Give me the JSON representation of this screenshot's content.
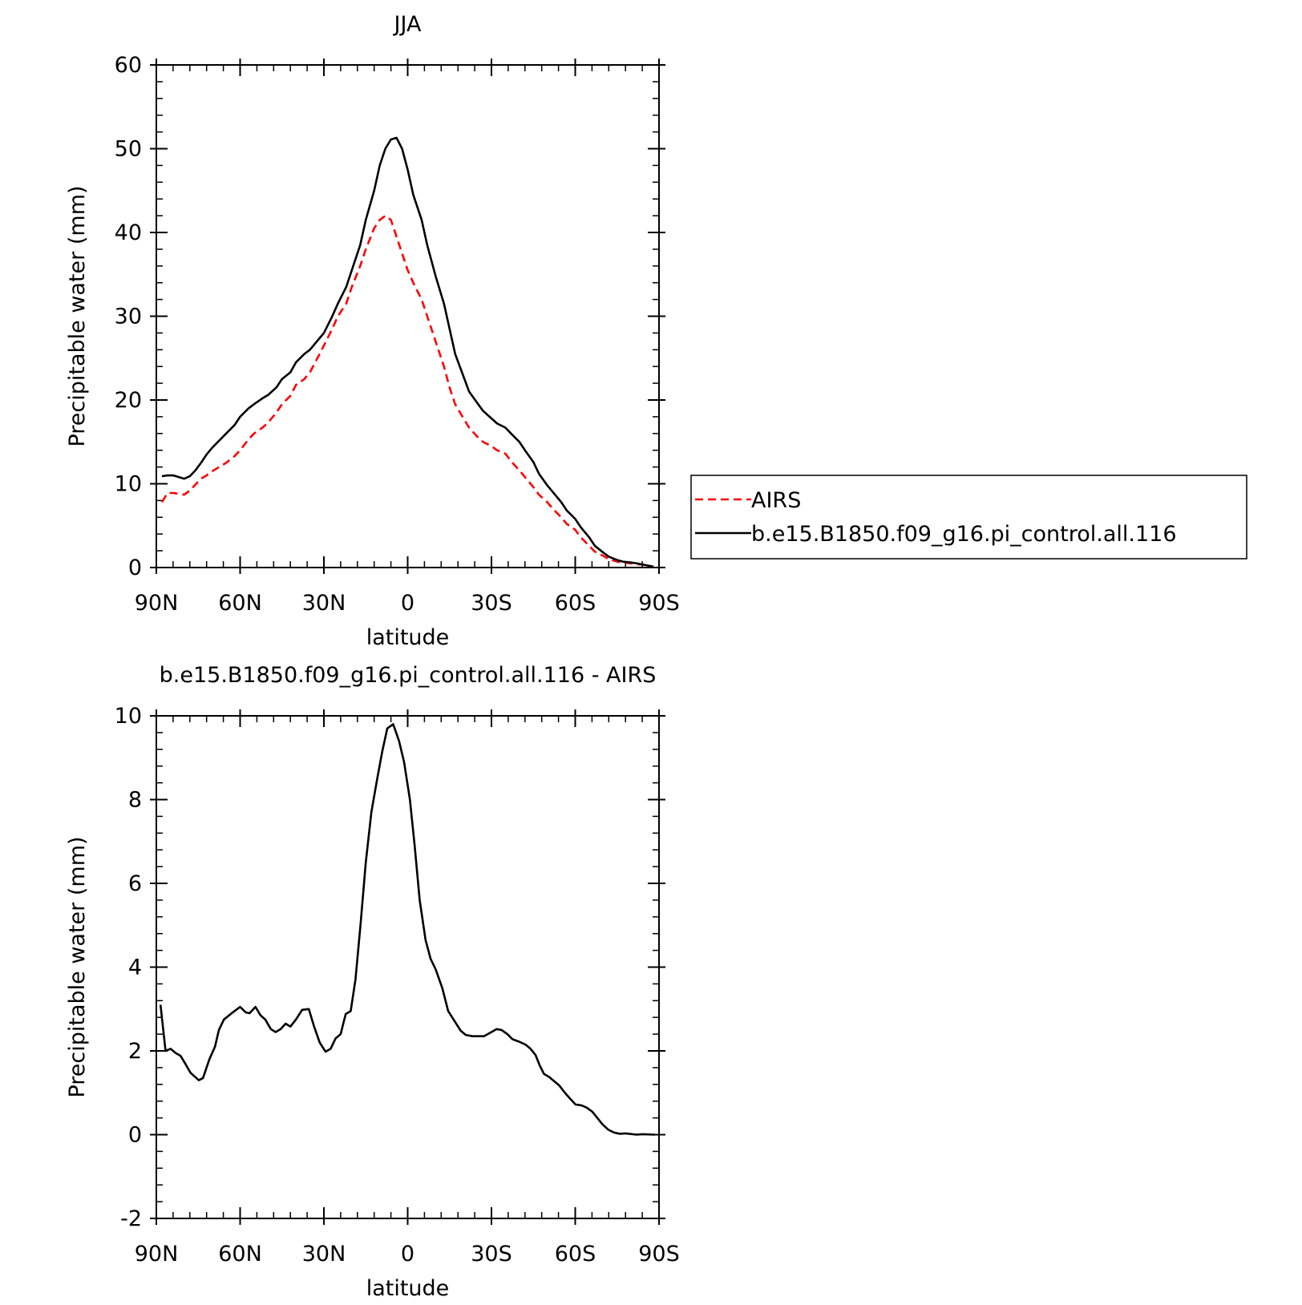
{
  "chart_data": [
    {
      "type": "line",
      "title": "JJA",
      "x_label": "latitude",
      "y_label": "Precipitable water (mm)",
      "xlim": [
        90,
        -90
      ],
      "xticks": [
        {
          "value": 90,
          "label": "90N"
        },
        {
          "value": 60,
          "label": "60N"
        },
        {
          "value": 30,
          "label": "30N"
        },
        0,
        {
          "value": -30,
          "label": "30S"
        },
        {
          "value": -60,
          "label": "60S"
        },
        {
          "value": -90,
          "label": "90S"
        }
      ],
      "ylim": [
        0,
        60
      ],
      "yticks": [
        0,
        10,
        20,
        30,
        40,
        50,
        60
      ],
      "legend": "right",
      "x": [
        88,
        86,
        84,
        82,
        80,
        78,
        76,
        74,
        72,
        70,
        65,
        62,
        60,
        57,
        55,
        52,
        50,
        47,
        45,
        42,
        40,
        37,
        35,
        32,
        30,
        27,
        25,
        22,
        20,
        17,
        15,
        12,
        10,
        8,
        6,
        4,
        2,
        0,
        -2,
        -5,
        -7,
        -10,
        -13,
        -15,
        -17,
        -20,
        -22,
        -25,
        -27,
        -30,
        -32,
        -35,
        -37,
        -40,
        -42,
        -45,
        -47,
        -50,
        -52,
        -55,
        -57,
        -60,
        -62,
        -65,
        -67,
        -70,
        -72,
        -75,
        -77,
        -80,
        -82,
        -85,
        -88
      ],
      "series": [
        {
          "name": "AIRS",
          "color": "#ff0000",
          "dash": true,
          "values": [
            7.8,
            8.9,
            8.9,
            8.8,
            8.7,
            9.2,
            9.9,
            10.6,
            11.0,
            11.5,
            12.5,
            13.3,
            14.0,
            15.3,
            16.0,
            16.7,
            17.3,
            18.5,
            19.5,
            20.5,
            21.8,
            22.5,
            23.3,
            25.2,
            26.5,
            28.5,
            30.0,
            31.5,
            33.5,
            36.0,
            38.0,
            40.5,
            41.5,
            42.0,
            41.5,
            39.5,
            37.5,
            35.5,
            34.0,
            32.0,
            30.0,
            27.0,
            24.0,
            21.5,
            19.5,
            17.8,
            16.7,
            15.6,
            15.0,
            14.5,
            14.0,
            13.6,
            12.7,
            11.6,
            10.8,
            9.6,
            8.7,
            7.8,
            7.0,
            6.0,
            5.2,
            4.5,
            3.6,
            2.6,
            1.9,
            1.4,
            1.0,
            0.7,
            0.6,
            0.5,
            0.4,
            0.3,
            0.1
          ]
        },
        {
          "name": "b.e15.B1850.f09_g16.pi_control.all.116",
          "color": "#000000",
          "dash": false,
          "values": [
            10.9,
            11.0,
            11.0,
            10.8,
            10.6,
            10.9,
            11.6,
            12.5,
            13.5,
            14.3,
            16.0,
            17.0,
            18.0,
            19.0,
            19.5,
            20.2,
            20.6,
            21.5,
            22.5,
            23.3,
            24.5,
            25.5,
            26.0,
            27.2,
            28.0,
            30.0,
            31.5,
            33.5,
            35.5,
            38.5,
            41.5,
            45.0,
            48.0,
            50.0,
            51.1,
            51.3,
            50.0,
            47.5,
            44.5,
            41.5,
            38.5,
            34.8,
            31.5,
            28.5,
            25.5,
            22.8,
            21.0,
            19.6,
            18.7,
            17.8,
            17.2,
            16.7,
            16.0,
            15.0,
            14.0,
            12.6,
            11.2,
            9.8,
            9.0,
            7.8,
            6.8,
            5.8,
            4.8,
            3.6,
            2.6,
            1.8,
            1.3,
            0.9,
            0.7,
            0.6,
            0.5,
            0.3,
            0.1
          ]
        }
      ]
    },
    {
      "type": "line",
      "title": "b.e15.B1850.f09_g16.pi_control.all.116 - AIRS",
      "x_label": "latitude",
      "y_label": "Precipitable water (mm)",
      "xlim": [
        90,
        -90
      ],
      "xticks": [
        {
          "value": 90,
          "label": "90N"
        },
        {
          "value": 60,
          "label": "60N"
        },
        {
          "value": 30,
          "label": "30N"
        },
        0,
        {
          "value": -30,
          "label": "30S"
        },
        {
          "value": -60,
          "label": "60S"
        },
        {
          "value": -90,
          "label": "90S"
        }
      ],
      "ylim": [
        -2,
        10
      ],
      "yticks": [
        -2,
        0,
        2,
        4,
        6,
        8,
        10
      ],
      "x": [
        88.5,
        86.7,
        84.9,
        83.1,
        81.3,
        79.5,
        77.8,
        74.8,
        73.3,
        71,
        69,
        67.6,
        65.8,
        63,
        60,
        58,
        56.6,
        54.5,
        52.7,
        51,
        49,
        47.3,
        45.5,
        43.7,
        42,
        40,
        37.8,
        35.4,
        33.6,
        31.5,
        29.4,
        27.6,
        25.8,
        24,
        22.2,
        20.4,
        18.7,
        16.9,
        15,
        13,
        10.9,
        9.1,
        7.3,
        5.2,
        3.1,
        1.3,
        -0.8,
        -2.5,
        -4.3,
        -6.4,
        -8.2,
        -10,
        -12.4,
        -14.5,
        -16.9,
        -19,
        -20.8,
        -23.2,
        -27.3,
        -30,
        -31.8,
        -33.6,
        -35.7,
        -37.5,
        -39.9,
        -42.2,
        -44,
        -45.8,
        -47.3,
        -48.8,
        -50.6,
        -52.4,
        -54.2,
        -56.3,
        -58.3,
        -60.1,
        -62.2,
        -64,
        -66.1,
        -67.9,
        -69.7,
        -71.8,
        -73.9,
        -76,
        -78,
        -82,
        -84,
        -88.5
      ],
      "series": [
        {
          "color": "#000000",
          "dash": false,
          "values": [
            3.1,
            2.0,
            2.05,
            1.95,
            1.88,
            1.68,
            1.48,
            1.3,
            1.35,
            1.8,
            2.1,
            2.5,
            2.75,
            2.9,
            3.05,
            2.92,
            2.9,
            3.05,
            2.85,
            2.75,
            2.52,
            2.45,
            2.52,
            2.65,
            2.58,
            2.75,
            2.98,
            3.0,
            2.6,
            2.2,
            1.98,
            2.05,
            2.3,
            2.4,
            2.88,
            2.95,
            3.7,
            5.0,
            6.5,
            7.7,
            8.5,
            9.15,
            9.7,
            9.8,
            9.4,
            8.9,
            8.0,
            6.9,
            5.6,
            4.65,
            4.2,
            3.95,
            3.5,
            2.95,
            2.7,
            2.48,
            2.38,
            2.35,
            2.35,
            2.45,
            2.52,
            2.5,
            2.4,
            2.28,
            2.22,
            2.15,
            2.05,
            1.9,
            1.65,
            1.45,
            1.38,
            1.28,
            1.18,
            1.0,
            0.85,
            0.72,
            0.7,
            0.65,
            0.55,
            0.4,
            0.25,
            0.12,
            0.05,
            0.02,
            0.03,
            0.0,
            0.01,
            0.0
          ]
        }
      ]
    }
  ]
}
